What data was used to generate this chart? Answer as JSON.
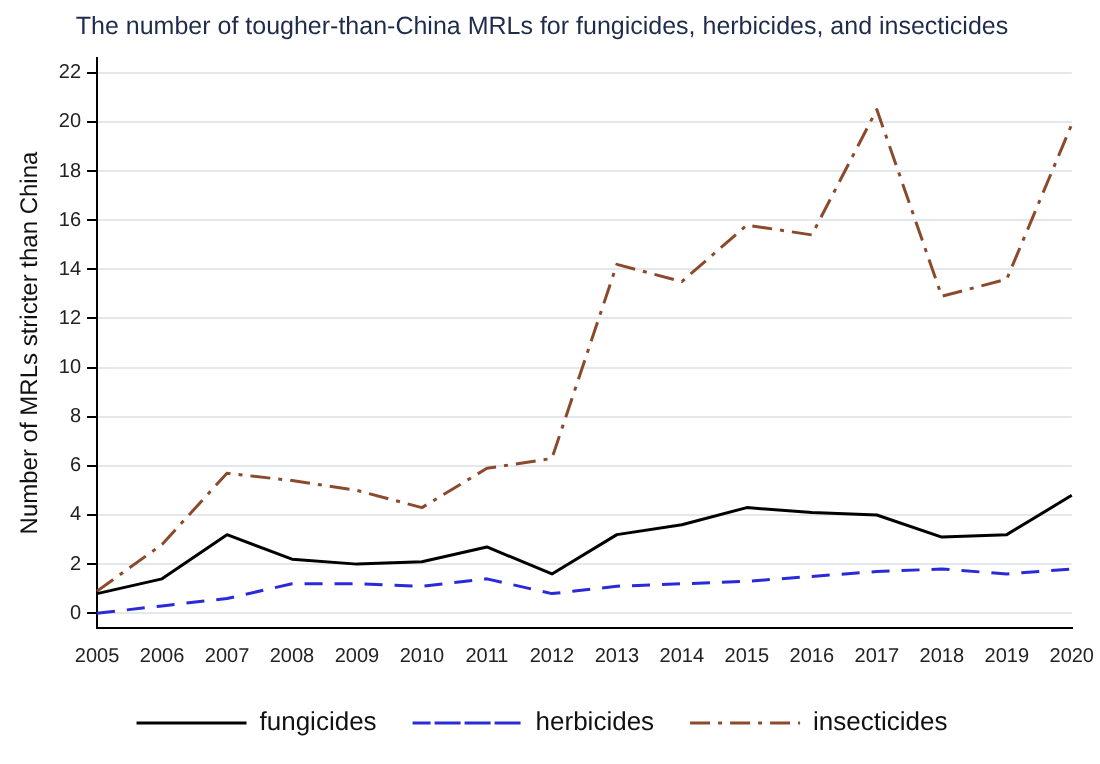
{
  "chart_data": {
    "type": "line",
    "title": "The number of tougher-than-China MRLs for fungicides, herbicides, and insecticides",
    "ylabel": "Number of MRLs stricter than China",
    "categories": [
      "2005",
      "2006",
      "2007",
      "2008",
      "2009",
      "2010",
      "2011",
      "2012",
      "2013",
      "2014",
      "2015",
      "2016",
      "2017",
      "2018",
      "2019",
      "2020"
    ],
    "series": [
      {
        "name": "fungicides",
        "color": "#000000",
        "line_style": "solid",
        "values": [
          0.8,
          1.4,
          3.2,
          2.2,
          2.0,
          2.1,
          2.7,
          1.6,
          3.2,
          3.6,
          4.3,
          4.1,
          4.0,
          3.1,
          3.2,
          4.8
        ]
      },
      {
        "name": "herbicides",
        "color": "#2a2ad8",
        "line_style": "dashed",
        "values": [
          0.0,
          0.3,
          0.6,
          1.2,
          1.2,
          1.1,
          1.4,
          0.8,
          1.1,
          1.2,
          1.3,
          1.5,
          1.7,
          1.8,
          1.6,
          1.8
        ]
      },
      {
        "name": "insecticides",
        "color": "#8b4a2b",
        "line_style": "dashdot",
        "values": [
          0.9,
          2.8,
          5.7,
          5.4,
          5.0,
          4.3,
          5.9,
          6.3,
          14.2,
          13.5,
          15.8,
          15.4,
          20.5,
          12.9,
          13.6,
          19.9
        ]
      }
    ],
    "ylim": [
      -0.6,
      22.6
    ],
    "yticks": [
      0,
      2,
      4,
      6,
      8,
      10,
      12,
      14,
      16,
      18,
      20,
      22
    ],
    "grid": "y",
    "legend": "bottom",
    "marker": "none"
  }
}
